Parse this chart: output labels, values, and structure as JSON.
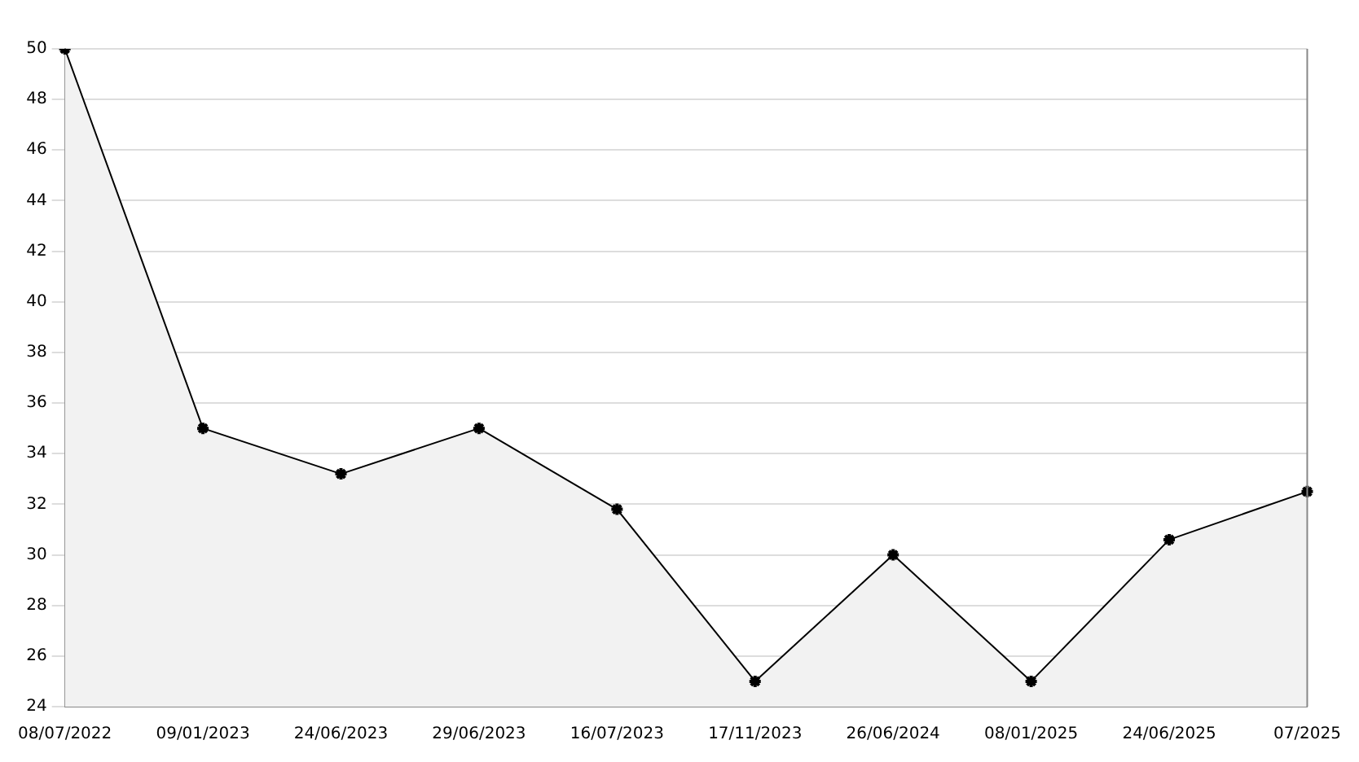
{
  "chart_data": {
    "type": "area",
    "categories": [
      "08/07/2022",
      "09/01/2023",
      "24/06/2023",
      "29/06/2023",
      "16/07/2023",
      "17/11/2023",
      "26/06/2024",
      "08/01/2025",
      "24/06/2025",
      "07/2025"
    ],
    "series": [
      {
        "color": "#000000",
        "values": [
          50,
          35,
          33.2,
          35,
          31.8,
          25,
          30,
          25,
          30.6,
          32.5
        ]
      }
    ],
    "ylim": [
      24,
      50
    ],
    "yticks": [
      24,
      26,
      28,
      30,
      32,
      34,
      36,
      38,
      40,
      42,
      44,
      46,
      48,
      50
    ],
    "grid": "y",
    "legend": false,
    "marker": "cross",
    "line_style": "solid"
  }
}
